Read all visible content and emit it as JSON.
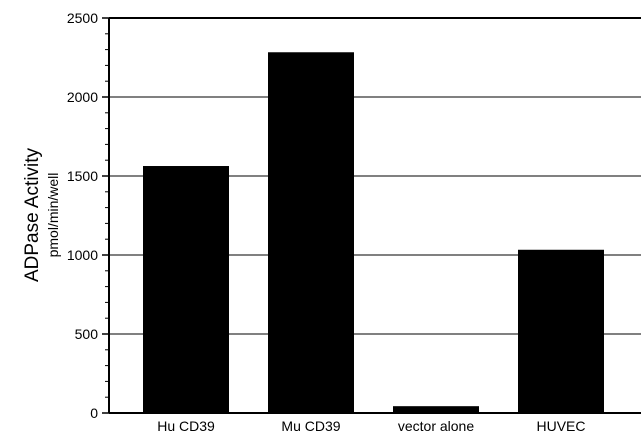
{
  "chart_data": {
    "type": "bar",
    "title": "",
    "xlabel": "",
    "ylabel": "ADPase Activity",
    "ylabel_units": "pmol/min/well",
    "categories": [
      "Hu CD39",
      "Mu CD39",
      "vector alone",
      "HUVEC"
    ],
    "values": [
      1560,
      2280,
      40,
      1030
    ],
    "ylim": [
      0,
      2500
    ],
    "yticks": [
      0,
      500,
      1000,
      1500,
      2000,
      2500
    ],
    "grid": "horizontal",
    "legend": "none",
    "bar_color": "#000000"
  }
}
